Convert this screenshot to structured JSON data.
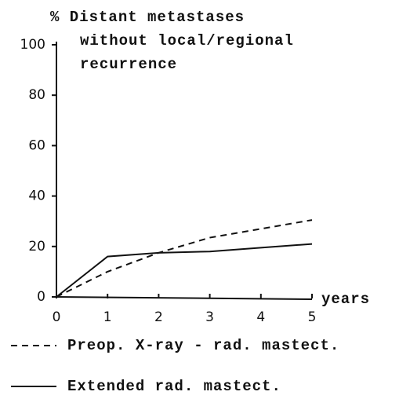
{
  "chart_data": {
    "type": "line",
    "ylabel": [
      "% Distant metastases",
      "without local/regional",
      "recurrence"
    ],
    "xlabel": "years",
    "x": [
      0,
      1,
      2,
      3,
      4,
      5
    ],
    "xlim": [
      0,
      5
    ],
    "xticks": [
      0,
      1,
      2,
      3,
      4,
      5
    ],
    "ylim": [
      0,
      100
    ],
    "yticks": [
      0,
      20,
      40,
      60,
      80,
      100
    ],
    "series": [
      {
        "name": "Preop. X-ray - rad. mastect.",
        "color": "#111111",
        "dash": "dashed",
        "values": [
          0,
          10,
          17.5,
          23.5,
          27,
          30.5
        ]
      },
      {
        "name": "Extended rad. mastect.",
        "color": "#111111",
        "dash": "solid",
        "values": [
          0,
          16,
          17.5,
          18,
          19.5,
          21
        ]
      }
    ]
  }
}
